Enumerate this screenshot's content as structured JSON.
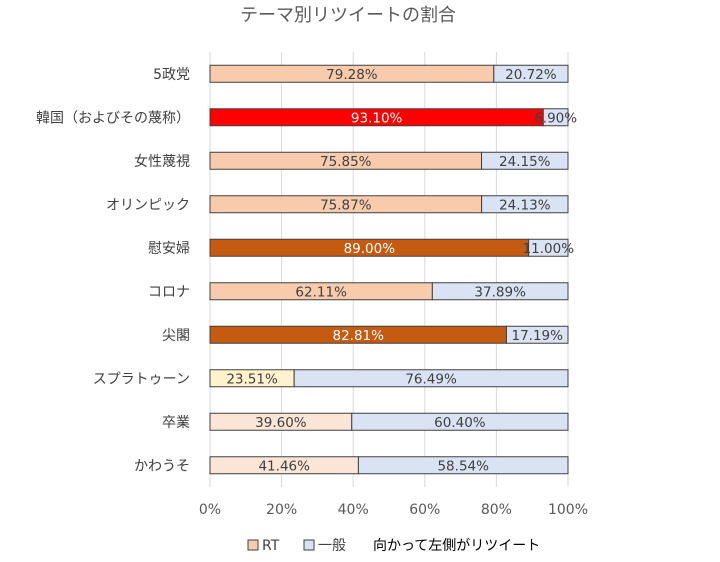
{
  "chart_data": {
    "type": "bar",
    "orientation": "horizontal",
    "stacked": "percent",
    "title": "テーマ別リツイートの割合",
    "categories": [
      "5政党",
      "韓国（およびその蔑称）",
      "女性蔑視",
      "オリンピック",
      "慰安婦",
      "コロナ",
      "尖閣",
      "スプラトゥーン",
      "卒業",
      "かわうそ"
    ],
    "series": [
      {
        "name": "RT",
        "values": [
          79.28,
          93.1,
          75.85,
          75.87,
          89.0,
          62.11,
          82.81,
          23.51,
          39.6,
          41.46
        ],
        "labels": [
          "79.28%",
          "93.10%",
          "75.85%",
          "75.87%",
          "89.00%",
          "62.11%",
          "82.81%",
          "23.51%",
          "39.60%",
          "41.46%"
        ],
        "colors": [
          "#f8cbad",
          "#ff0000",
          "#f8cbad",
          "#f8cbad",
          "#c55a11",
          "#f8cbad",
          "#c55a11",
          "#fff2cc",
          "#fbe5d6",
          "#fbe5d6"
        ],
        "label_colors": [
          "#404040",
          "#ffffff",
          "#404040",
          "#404040",
          "#ffffff",
          "#404040",
          "#ffffff",
          "#404040",
          "#404040",
          "#404040"
        ],
        "color": "#f8cbad"
      },
      {
        "name": "一般",
        "values": [
          20.72,
          6.9,
          24.15,
          24.13,
          11.0,
          37.89,
          17.19,
          76.49,
          60.4,
          58.54
        ],
        "labels": [
          "20.72%",
          "6.90%",
          "24.15%",
          "24.13%",
          "11.00%",
          "37.89%",
          "17.19%",
          "76.49%",
          "60.40%",
          "58.54%"
        ],
        "color": "#dae3f3"
      }
    ],
    "xlim": [
      0,
      100
    ],
    "xticks": [
      "0%",
      "20%",
      "40%",
      "60%",
      "80%",
      "100%"
    ],
    "grid": true,
    "legend_position": "bottom",
    "legend_note": "向かって左側がリツイート"
  }
}
